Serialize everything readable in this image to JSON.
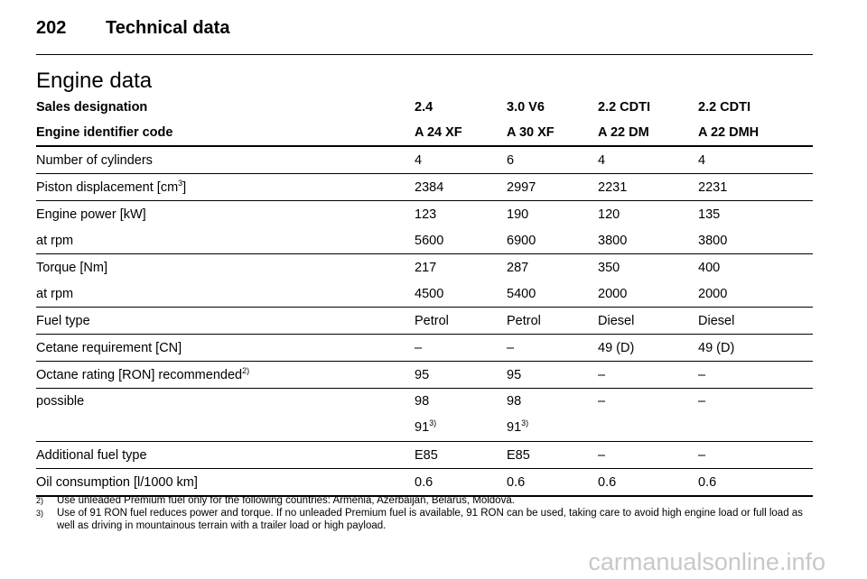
{
  "header": {
    "page_number": "202",
    "section": "Technical data"
  },
  "title": "Engine data",
  "table": {
    "header_rows": [
      [
        "Sales designation",
        "2.4",
        "3.0 V6",
        "2.2 CDTI",
        "2.2 CDTI"
      ],
      [
        "Engine identifier code",
        "A 24 XF",
        "A 30 XF",
        "A 22 DM",
        "A 22 DMH"
      ]
    ],
    "groups": [
      [
        [
          "Number of cylinders",
          "4",
          "6",
          "4",
          "4"
        ]
      ],
      [
        [
          {
            "text": "Piston displacement [cm",
            "sup": "3",
            "tail": "]"
          },
          "2384",
          "2997",
          "2231",
          "2231"
        ]
      ],
      [
        [
          "Engine power [kW]",
          "123",
          "190",
          "120",
          "135"
        ],
        [
          "at rpm",
          "5600",
          "6900",
          "3800",
          "3800"
        ]
      ],
      [
        [
          "Torque [Nm]",
          "217",
          "287",
          "350",
          "400"
        ],
        [
          "at rpm",
          "4500",
          "5400",
          "2000",
          "2000"
        ]
      ],
      [
        [
          "Fuel type",
          "Petrol",
          "Petrol",
          "Diesel",
          "Diesel"
        ]
      ],
      [
        [
          "Cetane requirement [CN]",
          "–",
          "–",
          "49 (D)",
          "49 (D)"
        ]
      ],
      [
        [
          {
            "text": "Octane rating [RON] recommended",
            "sup": "2)"
          },
          "95",
          "95",
          "–",
          "–"
        ]
      ],
      [
        [
          "possible",
          {
            "lines": [
              "98",
              {
                "text": "91",
                "sup": "3)"
              }
            ]
          },
          {
            "lines": [
              "98",
              {
                "text": "91",
                "sup": "3)"
              }
            ]
          },
          "–",
          "–"
        ]
      ],
      [
        [
          "Additional fuel type",
          "E85",
          "E85",
          "–",
          "–"
        ]
      ],
      [
        [
          "Oil consumption [l/1000 km]",
          "0.6",
          "0.6",
          "0.6",
          "0.6"
        ]
      ]
    ]
  },
  "footnotes": [
    {
      "marker": "2)",
      "text": "Use unleaded Premium fuel only for the following countries: Armenia, Azerbaijan, Belarus, Moldova."
    },
    {
      "marker": "3)",
      "text": "Use of 91 RON fuel reduces power and torque. If no unleaded Premium fuel is available, 91 RON can be used, taking care to avoid high engine load or full load as well as driving in mountainous terrain with a trailer load or high payload."
    }
  ],
  "watermark": "carmanualsonline.info"
}
